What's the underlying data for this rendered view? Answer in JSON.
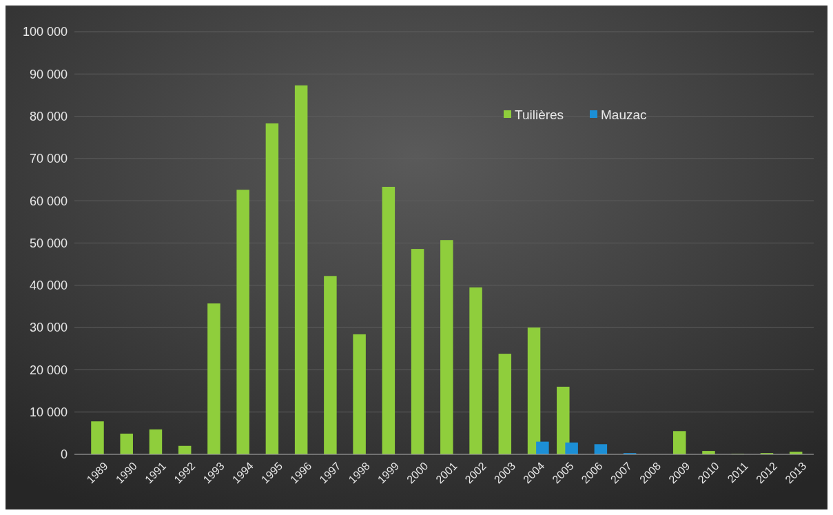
{
  "chart_data": {
    "type": "bar",
    "categories": [
      "1989",
      "1990",
      "1991",
      "1992",
      "1993",
      "1994",
      "1995",
      "1996",
      "1997",
      "1998",
      "1999",
      "2000",
      "2001",
      "2002",
      "2003",
      "2004",
      "2005",
      "2006",
      "2007",
      "2008",
      "2009",
      "2010",
      "2011",
      "2012",
      "2013"
    ],
    "series": [
      {
        "name": "Tuilières",
        "color": "#8fce3c",
        "values": [
          7800,
          4900,
          5900,
          2000,
          35700,
          62600,
          78300,
          87300,
          42200,
          28400,
          63300,
          48600,
          50700,
          39500,
          23800,
          30000,
          16000,
          0,
          0,
          0,
          5500,
          800,
          100,
          300,
          600
        ]
      },
      {
        "name": "Mauzac",
        "color": "#1c8fd6",
        "values": [
          null,
          null,
          null,
          null,
          null,
          null,
          null,
          null,
          null,
          null,
          null,
          null,
          null,
          null,
          null,
          3000,
          2800,
          2400,
          300,
          null,
          0,
          0,
          0,
          0,
          0
        ]
      }
    ],
    "ylim": [
      0,
      100000
    ],
    "yticks": [
      0,
      {
        "value": 10000,
        "label": "10 000"
      },
      {
        "value": 20000,
        "label": "20 000"
      },
      {
        "value": 30000,
        "label": "30 000"
      },
      {
        "value": 40000,
        "label": "40 000"
      },
      {
        "value": 50000,
        "label": "50 000"
      },
      {
        "value": 60000,
        "label": "60 000"
      },
      {
        "value": 70000,
        "label": "70 000"
      },
      {
        "value": 80000,
        "label": "80 000"
      },
      {
        "value": 90000,
        "label": "90 000"
      },
      {
        "value": 100000,
        "label": "100 000"
      }
    ],
    "grid": "y",
    "legend": "top right"
  }
}
